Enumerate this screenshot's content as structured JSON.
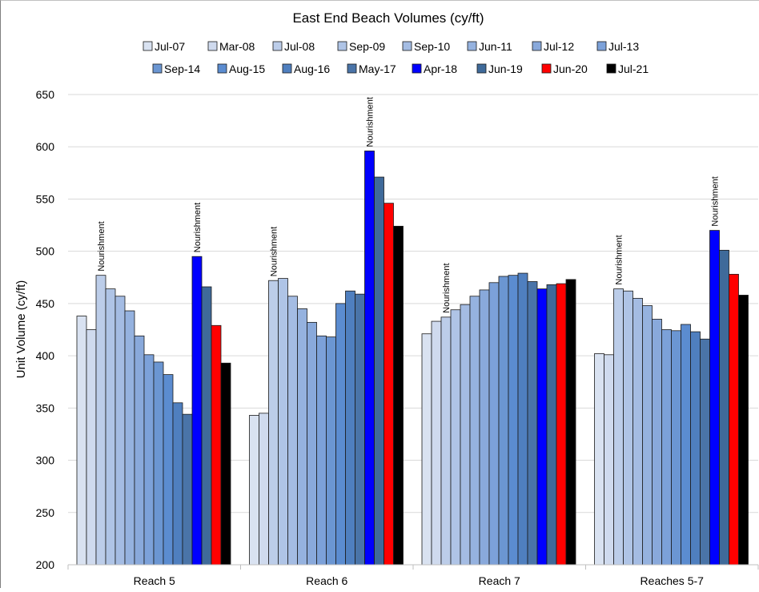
{
  "chart_data": {
    "type": "bar",
    "title": "East End Beach Volumes (cy/ft)",
    "xlabel": "",
    "ylabel": "Unit Volume (cy/ft)",
    "ylim": [
      200,
      650
    ],
    "yticks": [
      200,
      250,
      300,
      350,
      400,
      450,
      500,
      550,
      600,
      650
    ],
    "grid": true,
    "legend_position": "top",
    "categories": [
      "Reach 5",
      "Reach 6",
      "Reach 7",
      "Reaches 5-7"
    ],
    "series": [
      {
        "name": "Jul-07",
        "color": "#d9e2f1",
        "values": [
          438,
          343,
          421,
          402
        ]
      },
      {
        "name": "Mar-08",
        "color": "#cfdaee",
        "values": [
          425,
          345,
          433,
          401
        ]
      },
      {
        "name": "Jul-08",
        "color": "#bccde9",
        "values": [
          477,
          472,
          437,
          464
        ]
      },
      {
        "name": "Sep-09",
        "color": "#afc4e6",
        "values": [
          464,
          474,
          444,
          462
        ]
      },
      {
        "name": "Sep-10",
        "color": "#a4bce3",
        "values": [
          457,
          457,
          449,
          455
        ]
      },
      {
        "name": "Jun-11",
        "color": "#95b2df",
        "values": [
          443,
          445,
          457,
          448
        ]
      },
      {
        "name": "Jul-12",
        "color": "#89a9db",
        "values": [
          419,
          432,
          463,
          435
        ]
      },
      {
        "name": "Jul-13",
        "color": "#7ca1d9",
        "values": [
          401,
          419,
          470,
          425
        ]
      },
      {
        "name": "Sep-14",
        "color": "#6b96d2",
        "values": [
          394,
          418,
          476,
          424
        ]
      },
      {
        "name": "Aug-15",
        "color": "#5b8cd0",
        "values": [
          382,
          450,
          477,
          430
        ]
      },
      {
        "name": "Aug-16",
        "color": "#4f7fbf",
        "values": [
          355,
          462,
          479,
          423
        ]
      },
      {
        "name": "May-17",
        "color": "#4a74a8",
        "values": [
          344,
          459,
          471,
          416
        ]
      },
      {
        "name": "Apr-18",
        "color": "#0000ff",
        "values": [
          495,
          596,
          464,
          520
        ]
      },
      {
        "name": "Jun-19",
        "color": "#3f6a9a",
        "values": [
          466,
          571,
          468,
          501
        ]
      },
      {
        "name": "Jun-20",
        "color": "#ff0000",
        "values": [
          429,
          546,
          469,
          478
        ]
      },
      {
        "name": "Jul-21",
        "color": "#000000",
        "values": [
          393,
          524,
          473,
          458
        ]
      }
    ],
    "annotations": [
      {
        "text": "Nourishment",
        "category": "Reach 5",
        "series": "Jul-08"
      },
      {
        "text": "Nourishment",
        "category": "Reach 5",
        "series": "Apr-18"
      },
      {
        "text": "Nourishment",
        "category": "Reach 6",
        "series": "Jul-08"
      },
      {
        "text": "Nourishment",
        "category": "Reach 6",
        "series": "Apr-18"
      },
      {
        "text": "Nourishment",
        "category": "Reach 7",
        "series": "Jul-08"
      },
      {
        "text": "Nourishment",
        "category": "Reaches 5-7",
        "series": "Jul-08"
      },
      {
        "text": "Nourishment",
        "category": "Reaches 5-7",
        "series": "Apr-18"
      }
    ]
  }
}
